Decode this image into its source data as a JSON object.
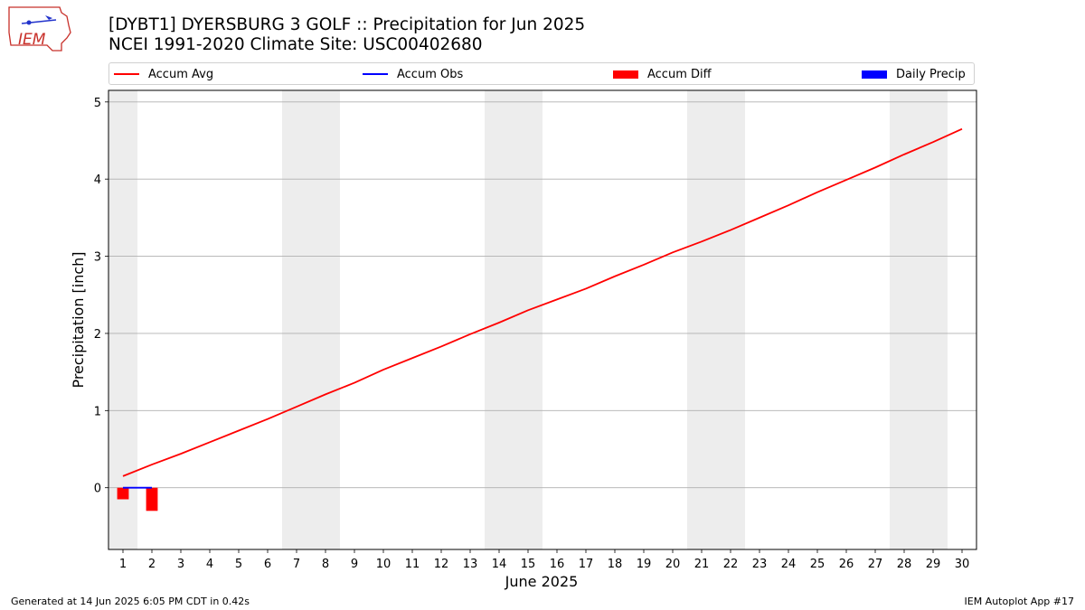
{
  "header": {
    "title_line1": "[DYBT1] DYERSBURG 3 GOLF :: Precipitation for Jun 2025",
    "title_line2": "NCEI 1991-2020 Climate Site: USC00402680",
    "logo_text": "IEM"
  },
  "footer": {
    "generated": "Generated at 14 Jun 2025 6:05 PM CDT in 0.42s",
    "app": "IEM Autoplot App #17"
  },
  "colors": {
    "accum_avg": "#ff0000",
    "accum_obs": "#0000ff",
    "accum_diff": "#ff0000",
    "daily_precip": "#0000ff",
    "weekend_shade": "#ededed",
    "grid": "#b0b0b0"
  },
  "legend": [
    {
      "label": "Accum Avg",
      "kind": "line",
      "color": "#ff0000"
    },
    {
      "label": "Accum Obs",
      "kind": "line",
      "color": "#0000ff"
    },
    {
      "label": "Accum Diff",
      "kind": "box",
      "color": "#ff0000"
    },
    {
      "label": "Daily Precip",
      "kind": "box",
      "color": "#0000ff"
    }
  ],
  "chart_data": {
    "type": "line",
    "xlabel": "June 2025",
    "ylabel": "Precipitation [inch]",
    "xlim": [
      0.5,
      30.5
    ],
    "ylim": [
      -0.8,
      5.15
    ],
    "grid": "y",
    "legend_position": "top",
    "x_ticks": [
      1,
      2,
      3,
      4,
      5,
      6,
      7,
      8,
      9,
      10,
      11,
      12,
      13,
      14,
      15,
      16,
      17,
      18,
      19,
      20,
      21,
      22,
      23,
      24,
      25,
      26,
      27,
      28,
      29,
      30
    ],
    "y_ticks": [
      0,
      1,
      2,
      3,
      4,
      5
    ],
    "weekend_spans": [
      [
        0.5,
        1.5
      ],
      [
        6.5,
        8.5
      ],
      [
        13.5,
        15.5
      ],
      [
        20.5,
        22.5
      ],
      [
        27.5,
        29.5
      ]
    ],
    "series": [
      {
        "name": "Accum Avg",
        "type": "line",
        "x": [
          1,
          2,
          3,
          4,
          5,
          6,
          7,
          8,
          9,
          10,
          11,
          12,
          13,
          14,
          15,
          16,
          17,
          18,
          19,
          20,
          21,
          22,
          23,
          24,
          25,
          26,
          27,
          28,
          29,
          30
        ],
        "values": [
          0.15,
          0.3,
          0.44,
          0.59,
          0.74,
          0.89,
          1.05,
          1.21,
          1.36,
          1.53,
          1.68,
          1.83,
          1.99,
          2.14,
          2.3,
          2.44,
          2.58,
          2.74,
          2.89,
          3.05,
          3.19,
          3.34,
          3.5,
          3.66,
          3.83,
          3.99,
          4.15,
          4.32,
          4.48,
          4.65
        ]
      },
      {
        "name": "Accum Obs",
        "type": "line",
        "x": [
          1,
          2
        ],
        "values": [
          0.0,
          0.0
        ]
      },
      {
        "name": "Accum Diff",
        "type": "bar",
        "x": [
          1,
          2
        ],
        "values": [
          -0.15,
          -0.3
        ]
      },
      {
        "name": "Daily Precip",
        "type": "bar",
        "x": [
          1,
          2
        ],
        "values": [
          0.0,
          0.0
        ]
      }
    ]
  }
}
